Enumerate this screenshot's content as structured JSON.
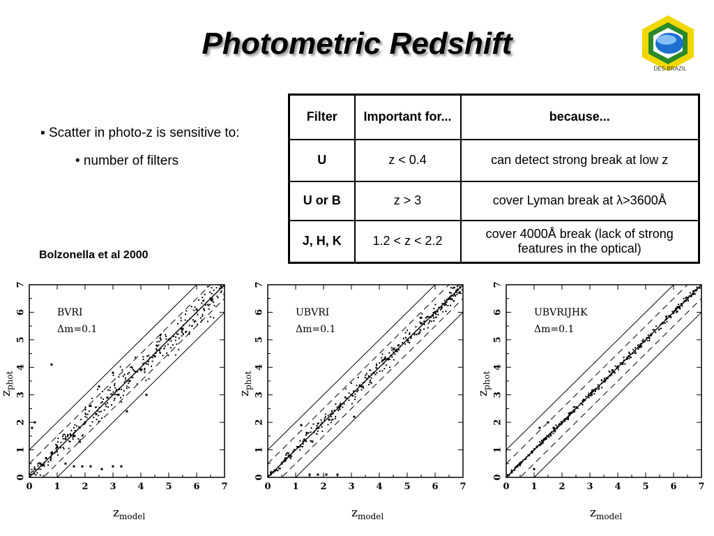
{
  "title": "Photometric Redshift",
  "logo": {
    "text": "DES-BRAZIL",
    "colors": {
      "hex": "#f2d600",
      "inner": "#2a8a2a",
      "globe": "#1e6fd0"
    }
  },
  "bullets": {
    "main": "▪ Scatter in photo-z is sensitive to:",
    "sub": "• number of filters"
  },
  "citation": "Bolzonella et al 2000",
  "table": {
    "headers": [
      "Filter",
      "Important for...",
      "because..."
    ],
    "rows": [
      [
        "U",
        "z < 0.4",
        "can detect strong break at low z"
      ],
      [
        "U or B",
        "z > 3",
        "cover Lyman break at λ>3600Å"
      ],
      [
        "J, H, K",
        "1.2 < z < 2.2",
        "cover 4000Å break (lack of strong features in the optical)"
      ]
    ]
  },
  "chart_data": [
    {
      "type": "scatter",
      "xlabel": "z_model",
      "ylabel": "z_phot",
      "xlim": [
        0,
        7
      ],
      "ylim": [
        0,
        7
      ],
      "xticks": [
        0,
        1,
        2,
        3,
        4,
        5,
        6,
        7
      ],
      "yticks": [
        0,
        1,
        2,
        3,
        4,
        5,
        6,
        7
      ],
      "annotation": [
        "BVRI",
        "Δm=0.1"
      ],
      "reference_lines": {
        "solid_offsets": [
          -1,
          1
        ],
        "dashed_offsets": [
          -0.5,
          0.5
        ],
        "diagonal": "y=x"
      },
      "scatter_level": "large",
      "x": [
        0.2,
        0.4,
        0.6,
        0.8,
        1.0,
        1.3,
        1.6,
        2.0,
        2.4,
        2.8,
        3.2,
        3.6,
        4.0,
        4.5,
        5.0,
        5.5,
        6.0,
        6.5,
        6.9,
        1.3,
        1.6,
        1.9,
        2.2,
        2.6,
        3.0,
        3.3,
        0.1,
        0.2,
        0.8,
        2.5,
        3.0,
        3.5,
        4.2,
        1.8,
        2.2
      ],
      "y": [
        0.3,
        0.5,
        0.7,
        0.9,
        1.1,
        1.4,
        1.5,
        2.0,
        2.3,
        2.9,
        3.0,
        3.5,
        3.9,
        4.4,
        5.0,
        5.4,
        6.1,
        6.5,
        6.9,
        0.5,
        0.4,
        0.4,
        0.4,
        0.3,
        0.4,
        0.4,
        1.8,
        2.0,
        4.1,
        3.3,
        3.8,
        2.4,
        3.0,
        1.3,
        2.6
      ]
    },
    {
      "type": "scatter",
      "xlabel": "z_model",
      "ylabel": "z_phot",
      "xlim": [
        0,
        7
      ],
      "ylim": [
        0,
        7
      ],
      "xticks": [
        0,
        1,
        2,
        3,
        4,
        5,
        6,
        7
      ],
      "yticks": [
        0,
        1,
        2,
        3,
        4,
        5,
        6,
        7
      ],
      "annotation": [
        "UBVRI",
        "Δm=0.1"
      ],
      "reference_lines": {
        "solid_offsets": [
          -1,
          1
        ],
        "dashed_offsets": [
          -0.5,
          0.5
        ],
        "diagonal": "y=x"
      },
      "scatter_level": "medium",
      "x": [
        0.2,
        0.5,
        0.8,
        1.1,
        1.4,
        1.8,
        2.2,
        2.6,
        3.0,
        3.4,
        3.8,
        4.2,
        4.6,
        5.0,
        5.5,
        6.0,
        6.5,
        6.9,
        1.5,
        1.8,
        2.1,
        2.5,
        1.2,
        1.6,
        3.1,
        5.5
      ],
      "y": [
        0.2,
        0.5,
        0.8,
        1.1,
        1.6,
        1.8,
        2.1,
        2.6,
        3.0,
        3.3,
        3.8,
        4.3,
        4.6,
        5.0,
        5.6,
        6.0,
        6.5,
        6.9,
        0.1,
        0.1,
        0.1,
        0.1,
        1.9,
        1.3,
        2.2,
        5.8
      ]
    },
    {
      "type": "scatter",
      "xlabel": "z_model",
      "ylabel": "z_phot",
      "xlim": [
        0,
        7
      ],
      "ylim": [
        0,
        7
      ],
      "xticks": [
        0,
        1,
        2,
        3,
        4,
        5,
        6,
        7
      ],
      "yticks": [
        0,
        1,
        2,
        3,
        4,
        5,
        6,
        7
      ],
      "annotation": [
        "UBVRIJHK",
        "Δm=0.1"
      ],
      "reference_lines": {
        "solid_offsets": [
          -1,
          1
        ],
        "dashed_offsets": [
          -0.5,
          0.5
        ],
        "diagonal": "y=x"
      },
      "scatter_level": "small",
      "x": [
        0.2,
        0.5,
        0.8,
        1.1,
        1.4,
        1.7,
        2.0,
        2.4,
        2.8,
        3.2,
        3.6,
        4.0,
        4.4,
        4.8,
        5.2,
        5.6,
        6.0,
        6.4,
        6.8,
        1.5,
        1.2,
        1.0
      ],
      "y": [
        0.2,
        0.5,
        0.8,
        1.1,
        1.4,
        1.8,
        2.0,
        2.4,
        2.8,
        3.2,
        3.6,
        4.0,
        4.4,
        4.8,
        5.2,
        5.6,
        6.0,
        6.4,
        6.8,
        2.0,
        1.8,
        0.3
      ]
    }
  ]
}
